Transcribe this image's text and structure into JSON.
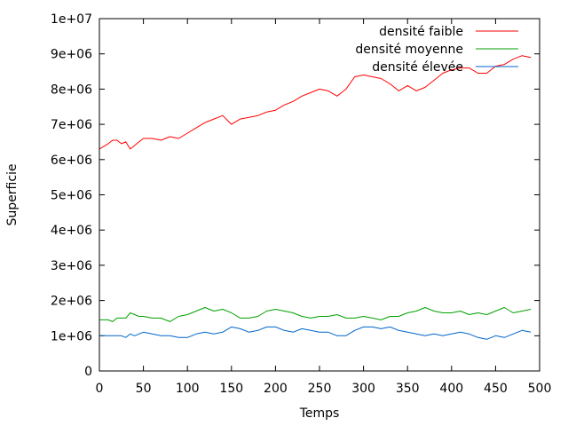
{
  "chart_data": {
    "type": "line",
    "title": "",
    "xlabel": "Temps",
    "ylabel": "Superficie",
    "xlim": [
      0,
      500
    ],
    "ylim": [
      0,
      10000000
    ],
    "x_ticks": [
      0,
      50,
      100,
      150,
      200,
      250,
      300,
      350,
      400,
      450,
      500
    ],
    "x_tick_labels": [
      "0",
      "50",
      "100",
      "150",
      "200",
      "250",
      "300",
      "350",
      "400",
      "450",
      "500"
    ],
    "y_ticks": [
      0,
      1000000,
      2000000,
      3000000,
      4000000,
      5000000,
      6000000,
      7000000,
      8000000,
      9000000,
      10000000
    ],
    "y_tick_labels": [
      "0",
      "1e+06",
      "2e+06",
      "3e+06",
      "4e+06",
      "5e+06",
      "6e+06",
      "7e+06",
      "8e+06",
      "9e+06",
      "1e+07"
    ],
    "grid": false,
    "legend": "top-right",
    "x": [
      0,
      10,
      15,
      20,
      25,
      30,
      35,
      40,
      45,
      50,
      60,
      70,
      80,
      90,
      100,
      110,
      120,
      130,
      140,
      150,
      160,
      170,
      180,
      190,
      200,
      210,
      220,
      230,
      240,
      250,
      260,
      270,
      280,
      290,
      300,
      310,
      320,
      330,
      340,
      350,
      360,
      370,
      380,
      390,
      400,
      410,
      420,
      430,
      440,
      450,
      460,
      470,
      480,
      490
    ],
    "series": [
      {
        "name": "densité faible",
        "color": "#ff0000",
        "values": [
          6300000,
          6450000,
          6550000,
          6550000,
          6450000,
          6500000,
          6300000,
          6400000,
          6500000,
          6600000,
          6600000,
          6550000,
          6650000,
          6600000,
          6750000,
          6900000,
          7050000,
          7150000,
          7250000,
          7000000,
          7150000,
          7200000,
          7250000,
          7350000,
          7400000,
          7550000,
          7650000,
          7800000,
          7900000,
          8000000,
          7950000,
          7800000,
          8000000,
          8350000,
          8400000,
          8350000,
          8300000,
          8150000,
          7950000,
          8100000,
          7950000,
          8050000,
          8250000,
          8450000,
          8550000,
          8600000,
          8600000,
          8450000,
          8450000,
          8650000,
          8700000,
          8850000,
          8950000,
          8900000
        ]
      },
      {
        "name": "densité moyenne",
        "color": "#00a000",
        "values": [
          1450000,
          1450000,
          1400000,
          1500000,
          1500000,
          1500000,
          1650000,
          1600000,
          1550000,
          1550000,
          1500000,
          1500000,
          1400000,
          1550000,
          1600000,
          1700000,
          1800000,
          1700000,
          1750000,
          1650000,
          1500000,
          1500000,
          1550000,
          1700000,
          1750000,
          1700000,
          1650000,
          1550000,
          1500000,
          1550000,
          1550000,
          1600000,
          1500000,
          1500000,
          1550000,
          1500000,
          1450000,
          1550000,
          1550000,
          1650000,
          1700000,
          1800000,
          1700000,
          1650000,
          1650000,
          1700000,
          1600000,
          1650000,
          1600000,
          1700000,
          1800000,
          1650000,
          1700000,
          1750000
        ]
      },
      {
        "name": "densité élevée",
        "color": "#0066cc",
        "values": [
          1000000,
          1000000,
          1000000,
          1000000,
          1000000,
          950000,
          1050000,
          1000000,
          1050000,
          1100000,
          1050000,
          1000000,
          1000000,
          950000,
          950000,
          1050000,
          1100000,
          1050000,
          1100000,
          1250000,
          1200000,
          1100000,
          1150000,
          1250000,
          1250000,
          1150000,
          1100000,
          1200000,
          1150000,
          1100000,
          1100000,
          1000000,
          1000000,
          1150000,
          1250000,
          1250000,
          1200000,
          1250000,
          1150000,
          1100000,
          1050000,
          1000000,
          1050000,
          1000000,
          1050000,
          1100000,
          1050000,
          950000,
          900000,
          1000000,
          950000,
          1050000,
          1150000,
          1100000
        ]
      }
    ]
  }
}
